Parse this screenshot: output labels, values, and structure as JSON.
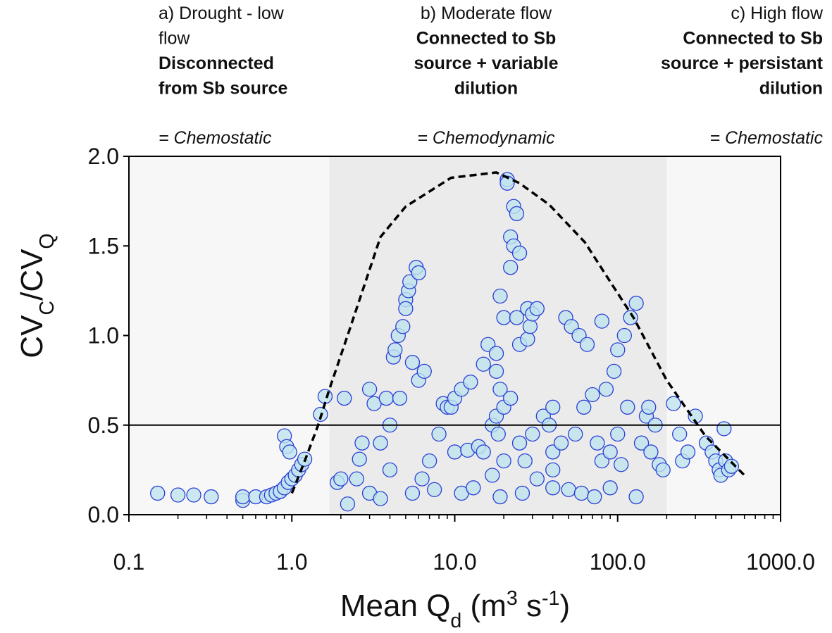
{
  "chart_data": {
    "type": "scatter",
    "xscale": "log",
    "xlim": [
      0.1,
      1000
    ],
    "ylim": [
      0,
      2
    ],
    "xticks": [
      {
        "value": 0.1,
        "label": "0.1"
      },
      {
        "value": 1,
        "label": "1.0"
      },
      {
        "value": 10,
        "label": "10.0"
      },
      {
        "value": 100,
        "label": "100.0"
      },
      {
        "value": 1000,
        "label": "1000.0"
      }
    ],
    "xminorticks": [
      0.2,
      0.3,
      0.4,
      0.5,
      0.6,
      0.7,
      0.8,
      0.9,
      2,
      3,
      4,
      5,
      6,
      7,
      8,
      9,
      20,
      30,
      40,
      50,
      60,
      70,
      80,
      90,
      200,
      300,
      400,
      500,
      600,
      700,
      800,
      900
    ],
    "yticks": [
      {
        "value": 0,
        "label": "0.0"
      },
      {
        "value": 0.5,
        "label": "0.5"
      },
      {
        "value": 1,
        "label": "1.0"
      },
      {
        "value": 1.5,
        "label": "1.5"
      },
      {
        "value": 2,
        "label": "2.0"
      }
    ],
    "xlabel_parts": [
      "Mean Q",
      "d",
      " (m",
      "3",
      " s",
      "-1",
      ")"
    ],
    "xlabel_styles": [
      "normal",
      "sub",
      "normal",
      "super",
      "normal",
      "super",
      "normal"
    ],
    "ylabel_parts": [
      "CV",
      "C",
      "/CV",
      "Q"
    ],
    "ylabel_styles": [
      "normal",
      "sub",
      "normal",
      "sub"
    ],
    "annotations": [
      {
        "lines": [
          "a) Drought - low",
          "flow"
        ],
        "bold_lines": [
          "Disconnected",
          "from Sb source"
        ],
        "regime": "= Chemostatic"
      },
      {
        "lines": [
          "b) Moderate flow"
        ],
        "bold_lines": [
          "Connected to Sb",
          "source + variable",
          "dilution"
        ],
        "regime": "= Chemodynamic"
      },
      {
        "lines": [
          "c) High flow"
        ],
        "bold_lines": [
          "Connected to Sb",
          "source + persistant",
          "dilution"
        ],
        "regime": "= Chemostatic"
      }
    ],
    "shaded_range": [
      1.7,
      200
    ],
    "hline": 0.5,
    "color": "#bfe3ef",
    "edge_color": "#2b3fd6",
    "curve": {
      "x": [
        1.0,
        1.2,
        1.45,
        1.7,
        2.2,
        3.5,
        5,
        9.5,
        18,
        25,
        38,
        63,
        90,
        125,
        200,
        345,
        600
      ],
      "y": [
        0.12,
        0.3,
        0.5,
        0.7,
        1.0,
        1.55,
        1.72,
        1.88,
        1.91,
        1.85,
        1.73,
        1.52,
        1.3,
        1.1,
        0.75,
        0.44,
        0.22
      ]
    },
    "x": [
      0.15,
      0.2,
      0.25,
      0.32,
      0.5,
      0.5,
      0.6,
      0.7,
      0.75,
      0.8,
      0.85,
      0.9,
      0.95,
      1.0,
      1.05,
      1.1,
      1.15,
      1.2,
      0.9,
      0.93,
      0.97,
      1.5,
      1.6,
      1.9,
      2.0,
      2.1,
      2.2,
      2.5,
      2.6,
      2.7,
      3.0,
      3.0,
      3.2,
      3.5,
      3.5,
      3.8,
      4.0,
      4.0,
      4.2,
      4.3,
      4.5,
      4.6,
      4.8,
      5.0,
      5.0,
      5.2,
      5.3,
      5.5,
      5.5,
      5.8,
      6.0,
      6.0,
      6.5,
      6.3,
      7.0,
      7.5,
      8.0,
      8.5,
      9.0,
      9.5,
      10,
      10,
      11,
      11,
      12,
      12.5,
      13,
      14,
      15,
      15,
      16,
      17,
      17,
      18,
      18,
      18,
      18.5,
      19,
      19,
      19,
      20,
      20,
      20,
      21,
      21,
      22,
      22,
      22,
      23,
      23,
      24,
      24,
      25,
      25,
      25,
      26,
      27,
      28,
      28,
      29,
      30,
      30,
      32,
      32,
      35,
      38,
      40,
      40,
      40,
      40,
      45,
      48,
      50,
      52,
      55,
      58,
      60,
      62,
      65,
      70,
      72,
      75,
      80,
      80,
      85,
      90,
      90,
      95,
      100,
      100,
      105,
      110,
      115,
      120,
      130,
      130,
      140,
      150,
      155,
      160,
      170,
      180,
      190,
      220,
      240,
      250,
      270,
      300,
      350,
      380,
      400,
      420,
      430,
      450,
      460,
      480,
      500
    ],
    "values": [
      0.12,
      0.11,
      0.11,
      0.1,
      0.08,
      0.1,
      0.1,
      0.1,
      0.11,
      0.12,
      0.13,
      0.15,
      0.18,
      0.2,
      0.22,
      0.25,
      0.28,
      0.31,
      0.44,
      0.38,
      0.35,
      0.56,
      0.66,
      0.18,
      0.2,
      0.65,
      0.06,
      0.2,
      0.31,
      0.4,
      0.12,
      0.7,
      0.62,
      0.09,
      0.4,
      0.65,
      0.25,
      0.5,
      0.88,
      0.92,
      1.0,
      0.65,
      1.05,
      1.2,
      1.15,
      1.25,
      1.3,
      0.85,
      0.12,
      1.38,
      1.35,
      0.75,
      0.8,
      0.2,
      0.3,
      0.14,
      0.45,
      0.62,
      0.6,
      0.6,
      0.35,
      0.65,
      0.7,
      0.12,
      0.36,
      0.74,
      0.15,
      0.38,
      0.84,
      0.35,
      0.95,
      0.22,
      0.5,
      0.9,
      0.55,
      0.8,
      0.45,
      0.7,
      1.22,
      0.1,
      0.6,
      1.1,
      0.3,
      1.87,
      1.85,
      1.55,
      1.38,
      0.65,
      1.72,
      1.5,
      1.68,
      1.1,
      1.46,
      0.95,
      0.4,
      0.12,
      0.3,
      1.15,
      0.98,
      1.05,
      1.12,
      0.45,
      1.15,
      0.2,
      0.55,
      0.5,
      0.15,
      0.25,
      0.35,
      0.6,
      0.4,
      1.1,
      0.14,
      1.05,
      0.45,
      1.0,
      0.12,
      0.6,
      0.95,
      0.67,
      0.1,
      0.4,
      1.08,
      0.3,
      0.7,
      0.35,
      0.15,
      0.8,
      0.92,
      0.45,
      0.28,
      1.0,
      0.6,
      1.1,
      1.18,
      0.1,
      0.4,
      0.55,
      0.6,
      0.35,
      0.5,
      0.28,
      0.25,
      0.62,
      0.45,
      0.3,
      0.35,
      0.55,
      0.4,
      0.35,
      0.3,
      0.25,
      0.22,
      0.48,
      0.3,
      0.25,
      0.27
    ]
  }
}
